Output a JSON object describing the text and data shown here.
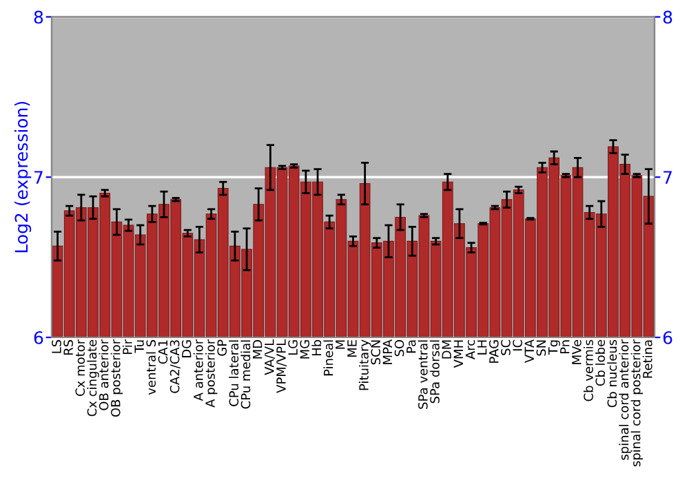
{
  "chart_data": {
    "type": "bar",
    "ylabel": "Log2 (expression)",
    "categories": [
      "LS",
      "RS",
      "Cx motor",
      "Cx cingulate",
      "OB anterior",
      "OB posterior",
      "Pir",
      "Tu",
      "ventral S",
      "CA1",
      "CA2/CA3",
      "DG",
      "A anterior",
      "A posterior",
      "GP",
      "CPu lateral",
      "CPu medial",
      "MD",
      "VA/VL",
      "VPM/VPL",
      "LG",
      "MG",
      "Hb",
      "Pineal",
      "M",
      "ME",
      "Pituitary",
      "SCN",
      "MPA",
      "SO",
      "Pa",
      "SPa ventral",
      "SPa dorsal",
      "DM",
      "VMH",
      "Arc",
      "LH",
      "PAG",
      "SC",
      "IC",
      "VTA",
      "SN",
      "Tg",
      "Pn",
      "MVe",
      "Cb vermis",
      "Cb lobe",
      "Cb nucleus",
      "spinal cord anterior",
      "spinal cord posterior",
      "Retina"
    ],
    "series": [
      {
        "color": "#b02a2a",
        "values": [
          6.57,
          6.79,
          6.81,
          6.81,
          6.9,
          6.72,
          6.7,
          6.64,
          6.77,
          6.83,
          6.86,
          6.65,
          6.61,
          6.77,
          6.93,
          6.57,
          6.55,
          6.83,
          7.06,
          7.06,
          7.07,
          6.97,
          6.97,
          6.72,
          6.86,
          6.6,
          6.96,
          6.59,
          6.6,
          6.75,
          6.6,
          6.76,
          6.6,
          6.97,
          6.71,
          6.56,
          6.71,
          6.81,
          6.86,
          6.92,
          6.74,
          7.06,
          7.12,
          7.01,
          7.06,
          6.78,
          6.77,
          7.19,
          7.08,
          7.01,
          6.88
        ],
        "errors": [
          0.09,
          0.03,
          0.08,
          0.07,
          0.02,
          0.08,
          0.035,
          0.06,
          0.05,
          0.08,
          0.01,
          0.02,
          0.08,
          0.03,
          0.04,
          0.09,
          0.13,
          0.1,
          0.14,
          0.01,
          0.01,
          0.07,
          0.08,
          0.04,
          0.03,
          0.03,
          0.13,
          0.03,
          0.1,
          0.08,
          0.09,
          0.01,
          0.02,
          0.05,
          0.09,
          0.03,
          0.005,
          0.01,
          0.05,
          0.02,
          0.005,
          0.03,
          0.04,
          0.01,
          0.06,
          0.04,
          0.08,
          0.04,
          0.06,
          0.01,
          0.17
        ]
      }
    ],
    "ylim": [
      6,
      8
    ],
    "yticks": [
      6,
      7,
      8
    ],
    "y2lim": [
      6,
      8
    ],
    "y2ticks": [
      6,
      7,
      8
    ],
    "grid": "y",
    "legend": false
  }
}
